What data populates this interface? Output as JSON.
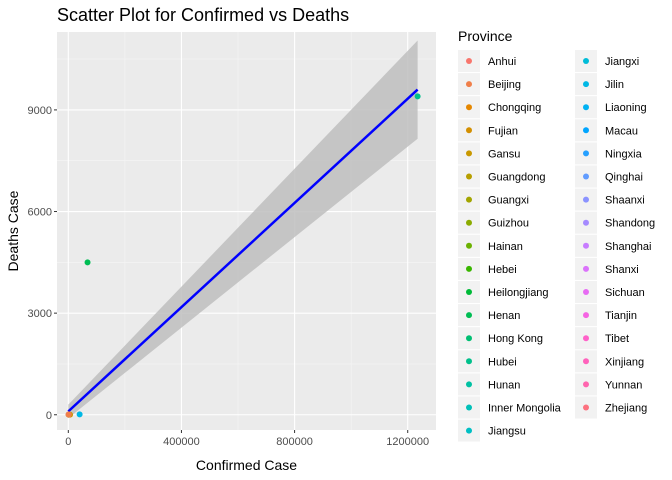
{
  "chart_data": {
    "type": "scatter",
    "title": "Scatter Plot for Confirmed vs Deaths",
    "xlabel": "Confirmed Case",
    "ylabel": "Deaths Case",
    "xlim": [
      -40000,
      1300000
    ],
    "ylim": [
      -450,
      11300
    ],
    "x_ticks": [
      0,
      400000,
      800000,
      1200000
    ],
    "x_tick_labels": [
      "0",
      "400000",
      "800000",
      "1200000"
    ],
    "y_ticks": [
      0,
      3000,
      6000,
      9000
    ],
    "y_tick_labels": [
      "0",
      "3000",
      "6000",
      "9000"
    ],
    "grid": true,
    "legend_title": "Province",
    "legend_placement": "right",
    "regression": {
      "x": [
        0,
        1235000
      ],
      "y": [
        100,
        9600
      ],
      "ci_lower": [
        -100,
        8150
      ],
      "ci_upper": [
        300,
        11050
      ],
      "line_color": "#0000FF",
      "band_color": "#bebebe"
    },
    "provinces": [
      {
        "name": "Anhui",
        "color": "#F8766D"
      },
      {
        "name": "Beijing",
        "color": "#F07F4A"
      },
      {
        "name": "Chongqing",
        "color": "#E58700"
      },
      {
        "name": "Fujian",
        "color": "#D38F00"
      },
      {
        "name": "Gansu",
        "color": "#C99800"
      },
      {
        "name": "Guangdong",
        "color": "#B79F00"
      },
      {
        "name": "Guangxi",
        "color": "#A3A500"
      },
      {
        "name": "Guizhou",
        "color": "#8BAB00"
      },
      {
        "name": "Hainan",
        "color": "#6BB100"
      },
      {
        "name": "Hebei",
        "color": "#39B600"
      },
      {
        "name": "Heilongjiang",
        "color": "#00BA38"
      },
      {
        "name": "Henan",
        "color": "#00BD54"
      },
      {
        "name": "Hong Kong",
        "color": "#00BF72"
      },
      {
        "name": "Hubei",
        "color": "#00C08B"
      },
      {
        "name": "Hunan",
        "color": "#00C1A3"
      },
      {
        "name": "Inner Mongolia",
        "color": "#00C0B8"
      },
      {
        "name": "Jiangsu",
        "color": "#00BFC4"
      },
      {
        "name": "Jiangxi",
        "color": "#00BCD8"
      },
      {
        "name": "Jilin",
        "color": "#00B8E5"
      },
      {
        "name": "Liaoning",
        "color": "#00B2F3"
      },
      {
        "name": "Macau",
        "color": "#00A5FF"
      },
      {
        "name": "Ningxia",
        "color": "#26A0FF"
      },
      {
        "name": "Qinghai",
        "color": "#619CFF"
      },
      {
        "name": "Shaanxi",
        "color": "#8B93FF"
      },
      {
        "name": "Shandong",
        "color": "#A58AFF"
      },
      {
        "name": "Shanghai",
        "color": "#C77CFF"
      },
      {
        "name": "Shanxi",
        "color": "#DB72FB"
      },
      {
        "name": "Sichuan",
        "color": "#E76BF3"
      },
      {
        "name": "Tianjin",
        "color": "#F564E3"
      },
      {
        "name": "Tibet",
        "color": "#FF61C9"
      },
      {
        "name": "Xinjiang",
        "color": "#FF62BC"
      },
      {
        "name": "Yunnan",
        "color": "#FF65AE"
      },
      {
        "name": "Zhejiang",
        "color": "#FC717F"
      }
    ],
    "points": [
      {
        "province": "Hubei",
        "x": 1235000,
        "y": 9400,
        "color": "#00C08B"
      },
      {
        "province": "Henan",
        "x": 68000,
        "y": 4500,
        "color": "#00BD54"
      },
      {
        "province": "Jilin",
        "x": 40000,
        "y": 10,
        "color": "#00B8E5"
      },
      {
        "province": "Guangdong",
        "x": 3000,
        "y": 8,
        "color": "#B79F00"
      },
      {
        "province": "Chongqing",
        "x": 1500,
        "y": 6,
        "color": "#E58700"
      },
      {
        "province": "Gansu",
        "x": 6000,
        "y": 4,
        "color": "#C99800"
      },
      {
        "province": "Fujian",
        "x": 2500,
        "y": 3,
        "color": "#D38F00"
      },
      {
        "province": "Guangxi",
        "x": 1200,
        "y": 2,
        "color": "#A3A500"
      },
      {
        "province": "Anhui",
        "x": 900,
        "y": 6,
        "color": "#F8766D"
      },
      {
        "province": "Beijing",
        "x": 1800,
        "y": 9,
        "color": "#F07F4A"
      }
    ]
  }
}
